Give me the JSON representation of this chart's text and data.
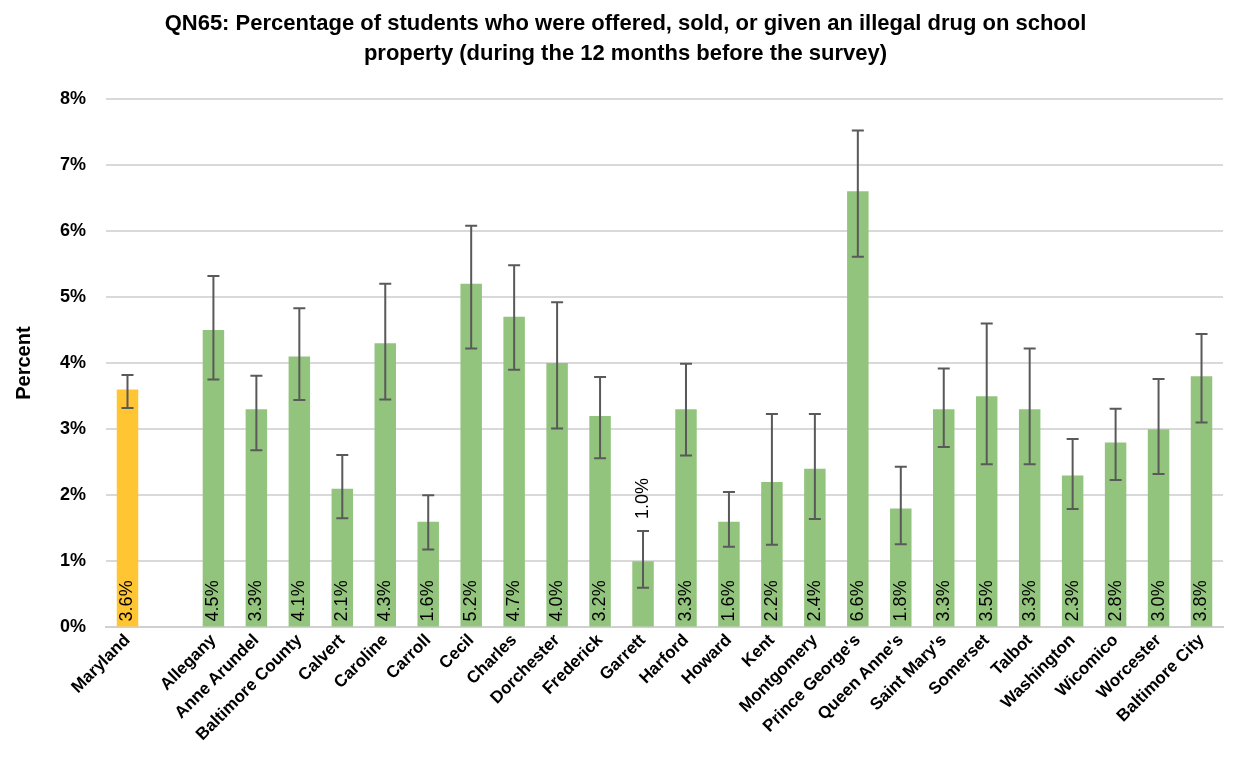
{
  "chart_data": {
    "type": "bar",
    "title": "QN65: Percentage of students who were offered, sold, or given an illegal drug on school property (during the 12 months before the survey)",
    "ylabel": "Percent",
    "categories": [
      "Maryland",
      null,
      "Allegany",
      "Anne Arundel",
      "Baltimore County",
      "Calvert",
      "Caroline",
      "Carroll",
      "Cecil",
      "Charles",
      "Dorchester",
      "Frederick",
      "Garrett",
      "Harford",
      "Howard",
      "Kent",
      "Montgomery",
      "Prince George's",
      "Queen Anne's",
      "Saint Mary's",
      "Somerset",
      "Talbot",
      "Washington",
      "Wicomico",
      "Worcester",
      "Baltimore City"
    ],
    "values": [
      3.6,
      null,
      4.5,
      3.3,
      4.1,
      2.1,
      4.3,
      1.6,
      5.2,
      4.7,
      4.0,
      3.2,
      1.0,
      3.3,
      1.6,
      2.2,
      2.4,
      6.6,
      1.8,
      3.3,
      3.5,
      3.3,
      2.3,
      2.8,
      3.0,
      3.8
    ],
    "value_labels": [
      "3.6%",
      null,
      "4.5%",
      "3.3%",
      "4.1%",
      "2.1%",
      "4.3%",
      "1.6%",
      "5.2%",
      "4.7%",
      "4.0%",
      "3.2%",
      "1.0%",
      "3.3%",
      "1.6%",
      "2.2%",
      "2.4%",
      "6.6%",
      "1.8%",
      "3.3%",
      "3.5%",
      "3.3%",
      "2.3%",
      "2.8%",
      "3.0%",
      "3.8%"
    ],
    "errors": [
      [
        3.32,
        3.82
      ],
      null,
      [
        3.75,
        5.32
      ],
      [
        2.68,
        3.81
      ],
      [
        3.44,
        4.83
      ],
      [
        1.65,
        2.61
      ],
      [
        3.45,
        5.2
      ],
      [
        1.18,
        2.0
      ],
      [
        4.22,
        6.08
      ],
      [
        3.9,
        5.48
      ],
      [
        3.01,
        4.92
      ],
      [
        2.56,
        3.79
      ],
      [
        0.6,
        1.46
      ],
      [
        2.6,
        3.99
      ],
      [
        1.22,
        2.05
      ],
      [
        1.25,
        3.23
      ],
      [
        1.64,
        3.23
      ],
      [
        5.61,
        7.52
      ],
      [
        1.26,
        2.43
      ],
      [
        2.73,
        3.92
      ],
      [
        2.47,
        4.6
      ],
      [
        2.47,
        4.22
      ],
      [
        1.79,
        2.85
      ],
      [
        2.23,
        3.31
      ],
      [
        2.32,
        3.76
      ],
      [
        3.1,
        4.44
      ]
    ],
    "colors": [
      "#ffc533",
      null,
      "#93c47d",
      "#93c47d",
      "#93c47d",
      "#93c47d",
      "#93c47d",
      "#93c47d",
      "#93c47d",
      "#93c47d",
      "#93c47d",
      "#93c47d",
      "#93c47d",
      "#93c47d",
      "#93c47d",
      "#93c47d",
      "#93c47d",
      "#93c47d",
      "#93c47d",
      "#93c47d",
      "#93c47d",
      "#93c47d",
      "#93c47d",
      "#93c47d",
      "#93c47d",
      "#93c47d"
    ],
    "ylim": [
      0,
      8
    ],
    "yticks": [
      {
        "value": 0,
        "label": "0%"
      },
      {
        "value": 1,
        "label": "1%"
      },
      {
        "value": 2,
        "label": "2%"
      },
      {
        "value": 3,
        "label": "3%"
      },
      {
        "value": 4,
        "label": "4%"
      },
      {
        "value": 5,
        "label": "5%"
      },
      {
        "value": 6,
        "label": "6%"
      },
      {
        "value": 7,
        "label": "7%"
      },
      {
        "value": 8,
        "label": "8%"
      }
    ],
    "grid": "y",
    "legend": false
  }
}
